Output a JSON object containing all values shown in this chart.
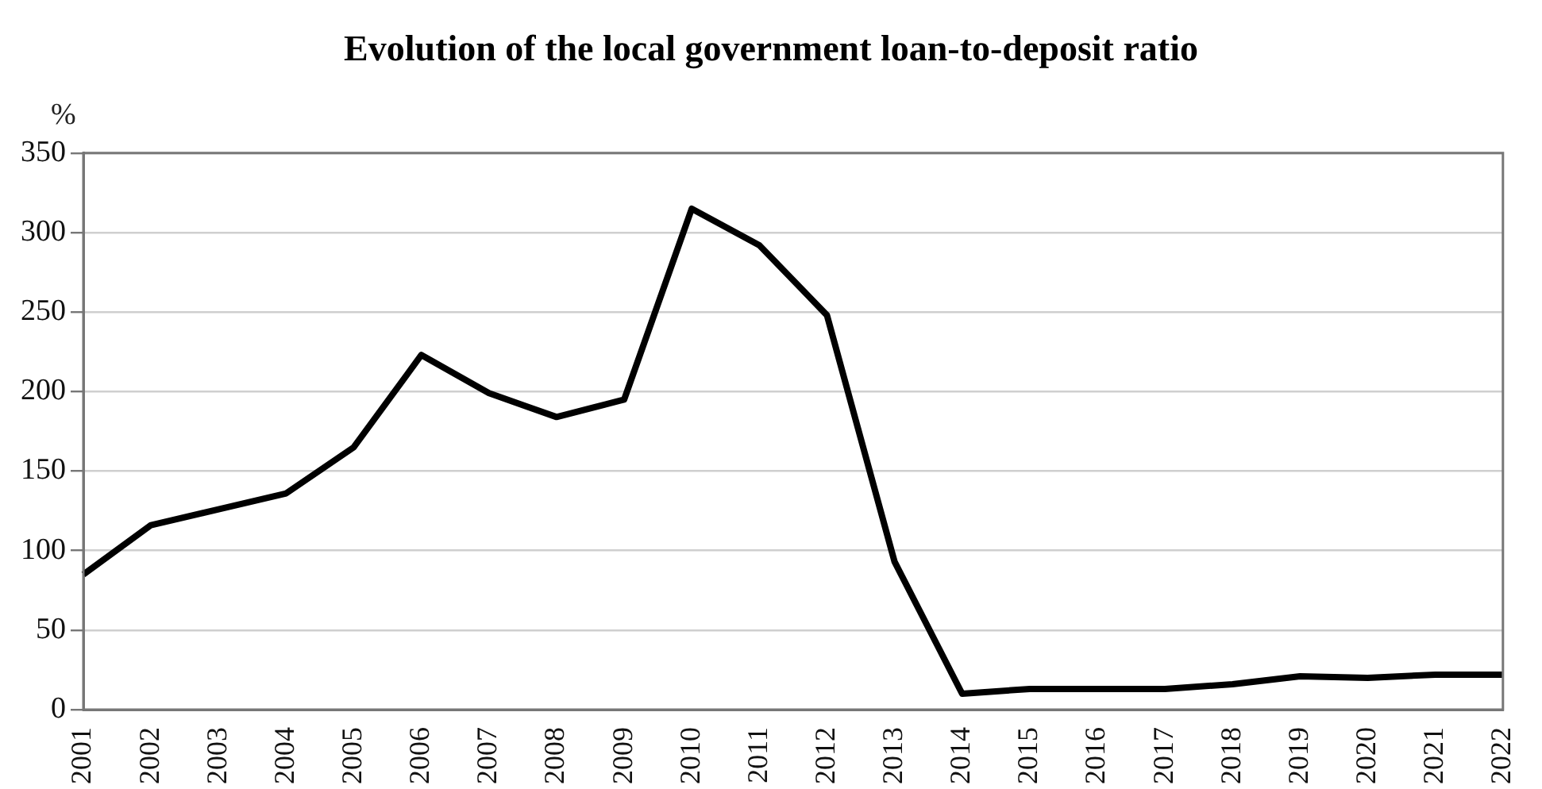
{
  "chart_data": {
    "type": "line",
    "title": "Evolution of the local government loan-to-deposit ratio",
    "ylabel": "%",
    "categories": [
      "2001",
      "2002",
      "2003",
      "2004",
      "2005",
      "2006",
      "2007",
      "2008",
      "2009",
      "2010",
      "2011",
      "2012",
      "2013",
      "2014",
      "2015",
      "2016",
      "2017",
      "2018",
      "2019",
      "2020",
      "2021",
      "2022"
    ],
    "series": [
      {
        "color": "#000000",
        "values": [
          85,
          116,
          126,
          136,
          165,
          223,
          199,
          184,
          195,
          315,
          292,
          248,
          93,
          10,
          13,
          13,
          13,
          16,
          21,
          20,
          22,
          22
        ]
      }
    ],
    "ylim": [
      0,
      350
    ],
    "yticks": [
      0,
      50,
      100,
      150,
      200,
      250,
      300,
      350
    ],
    "grid": "y",
    "legend": false,
    "marker": "none",
    "line_style": "solid"
  }
}
